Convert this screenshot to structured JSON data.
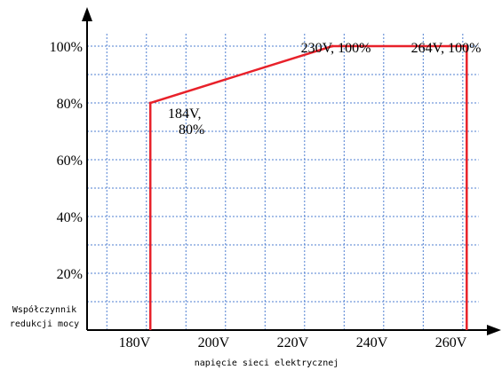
{
  "chart_data": {
    "type": "line",
    "xlabel": "napięcie sieci elektrycznej",
    "ylabel_lines": [
      "Współczynnik",
      "redukcji mocy"
    ],
    "x_tick_labels": [
      "180V",
      "200V",
      "220V",
      "240V",
      "260V"
    ],
    "x_ticks": [
      180,
      200,
      220,
      240,
      260
    ],
    "y_tick_labels": [
      "20%",
      "40%",
      "60%",
      "80%",
      "100%"
    ],
    "y_ticks": [
      20,
      40,
      60,
      80,
      100
    ],
    "xlim": [
      168,
      270
    ],
    "ylim": [
      0,
      110
    ],
    "grid": true,
    "grid_x": [
      173,
      183,
      193,
      203,
      213,
      223,
      233,
      243,
      253,
      263
    ],
    "grid_y": [
      10,
      20,
      30,
      40,
      50,
      60,
      70,
      80,
      90,
      100
    ],
    "series": [
      {
        "x": [
          184,
          184,
          230,
          264,
          264
        ],
        "y": [
          0,
          80,
          100,
          100,
          0
        ],
        "color": "#e8212a"
      }
    ],
    "annotations": [
      {
        "lines": [
          "184V,",
          "80%"
        ],
        "x": 184,
        "y": 80
      },
      {
        "lines": [
          "230V, 100%"
        ],
        "x": 230,
        "y": 100
      },
      {
        "lines": [
          "264V, 100%"
        ],
        "x": 264,
        "y": 100
      }
    ]
  }
}
